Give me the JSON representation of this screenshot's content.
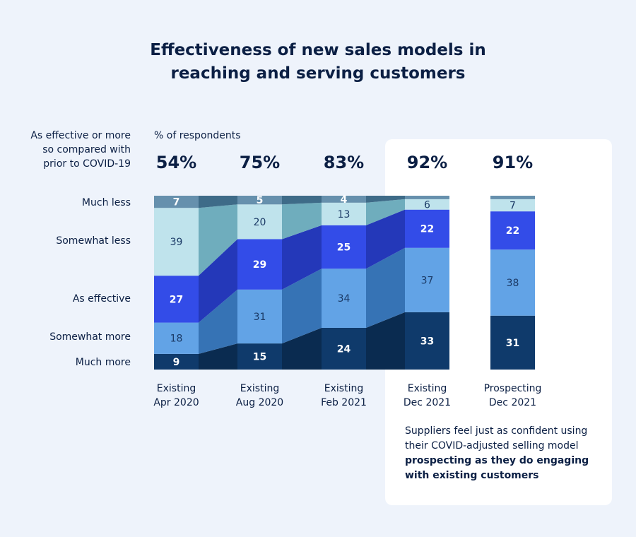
{
  "title_lines": [
    "Effectiveness of new sales models in",
    "reaching and serving customers"
  ],
  "y_heading_lines": [
    "As effective or more",
    "so compared with",
    "prior to COVID-19"
  ],
  "unit_label": "% of respondents",
  "note": {
    "text": "Suppliers feel just as confident using their COVID-adjusted selling model ",
    "bold": "prospecting as they do engaging with existing customers"
  },
  "chart_data": {
    "type": "bar",
    "stacked": true,
    "categories": [
      [
        "Existing",
        "Apr 2020"
      ],
      [
        "Existing",
        "Aug 2020"
      ],
      [
        "Existing",
        "Feb 2021"
      ],
      [
        "Existing",
        "Dec 2021"
      ],
      [
        "Prospecting",
        "Dec 2021"
      ]
    ],
    "headline_values": [
      "54%",
      "75%",
      "83%",
      "92%",
      "91%"
    ],
    "series": [
      {
        "name": "Much more",
        "values": [
          9,
          15,
          24,
          33,
          31
        ],
        "labels": [
          "9",
          "15",
          "24",
          "33",
          "31"
        ],
        "color": "#0f3a6b",
        "connector": "#0a2b50",
        "text": "#ffffff"
      },
      {
        "name": "Somewhat more",
        "values": [
          18,
          31,
          34,
          37,
          38
        ],
        "labels": [
          "18",
          "31",
          "34",
          "37",
          "38"
        ],
        "color": "#62a3e6",
        "connector": "#3673b5",
        "text": "#1b3a66"
      },
      {
        "name": "As effective",
        "values": [
          27,
          29,
          25,
          22,
          22
        ],
        "labels": [
          "27",
          "29",
          "25",
          "22",
          "22"
        ],
        "color": "#334ce8",
        "connector": "#2438b9",
        "text": "#ffffff"
      },
      {
        "name": "Somewhat less",
        "values": [
          39,
          20,
          13,
          6,
          7
        ],
        "labels": [
          "39",
          "20",
          "13",
          "6",
          "7"
        ],
        "color": "#bfe3ec",
        "connector": "#6fadbd",
        "text": "#1b3a66"
      },
      {
        "name": "Much less",
        "values": [
          7,
          5,
          4,
          2,
          2
        ],
        "labels": [
          "7",
          "5",
          "4",
          "",
          ""
        ],
        "color": "#6690ad",
        "connector": "#3e6b88",
        "text": "#ffffff"
      }
    ],
    "ylim": [
      0,
      100
    ]
  }
}
